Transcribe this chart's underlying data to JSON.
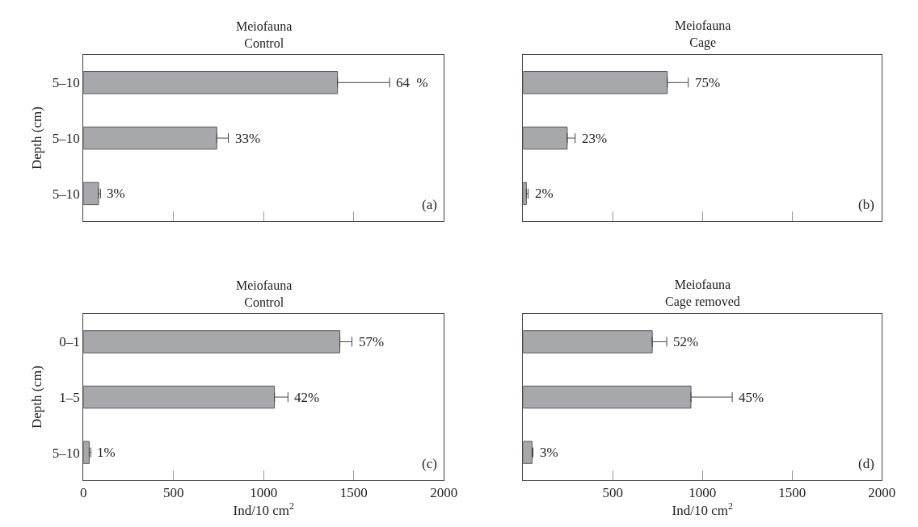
{
  "chart_data": [
    {
      "type": "bar",
      "orientation": "horizontal",
      "title": "Meiofauna\nControl",
      "ylabel": "Depth (cm)",
      "categories": [
        "5–10",
        "5–10",
        "5–10"
      ],
      "values": [
        1410,
        740,
        84
      ],
      "errors": [
        [
          1410,
          1699
        ],
        [
          740,
          804
        ],
        [
          84,
          95
        ]
      ],
      "color": "#a7a8ab",
      "xlim": [
        0,
        2000
      ],
      "xticks": [
        {
          "value": 500,
          "label": null
        },
        {
          "value": 1000,
          "label": null
        },
        {
          "value": 1500,
          "label": null
        }
      ],
      "tick_labels": "y",
      "annotations": [
        "(a)",
        {
          "text": "64  %",
          "x": 1699
        },
        {
          "text": "33%",
          "x": 804
        },
        {
          "text": "3%",
          "x": 95
        }
      ]
    },
    {
      "type": "bar",
      "orientation": "horizontal",
      "title": "Meiofauna\nCage",
      "categories": [
        null,
        null,
        null
      ],
      "values": [
        804,
        246,
        18
      ],
      "errors": [
        [
          804,
          921
        ],
        [
          246,
          290
        ],
        [
          18,
          28
        ]
      ],
      "color": "#a7a8ab",
      "xlim": [
        0,
        2000
      ],
      "xticks": [
        {
          "value": 500,
          "label": null
        },
        {
          "value": 1000,
          "label": null
        },
        {
          "value": 1500,
          "label": null
        }
      ],
      "tick_labels": false,
      "annotations": [
        "(b)",
        {
          "text": "75%",
          "x": 921
        },
        {
          "text": "23%",
          "x": 290
        },
        {
          "text": "2%",
          "x": 28
        }
      ]
    },
    {
      "type": "bar",
      "orientation": "horizontal",
      "title": "Meiofauna\nControl",
      "xlabel": "Ind/10 cm$^{2}$",
      "ylabel": "Depth (cm)",
      "categories": [
        "0–1",
        "1–5",
        "5–10"
      ],
      "values": [
        1423,
        1060,
        32
      ],
      "errors": [
        [
          1423,
          1490
        ],
        [
          1060,
          1135
        ],
        [
          32,
          41
        ]
      ],
      "color": "#a7a8ab",
      "xlim": [
        0,
        2000
      ],
      "xticks": [
        0,
        500,
        1000,
        1500,
        2000
      ],
      "annotations": [
        "(c)",
        {
          "text": "57%",
          "x": 1490,
          "y": "0–1"
        },
        {
          "text": "42%",
          "x": 1135,
          "y": "1–5"
        },
        {
          "text": "1%",
          "x": 41,
          "y": "5–10"
        }
      ]
    },
    {
      "type": "bar",
      "orientation": "horizontal",
      "title": "Meiofauna\nCage removed",
      "xlabel": "Ind/10 cm$^{2}$",
      "categories": [
        null,
        null,
        null
      ],
      "values": [
        720,
        936,
        50
      ],
      "errors": [
        [
          720,
          801
        ],
        [
          936,
          1166
        ],
        [
          50,
          55
        ]
      ],
      "color": "#a7a8ab",
      "xlim": [
        0,
        2000
      ],
      "xticks": [
        500,
        1000,
        1500,
        2000
      ],
      "tick_labels": "x",
      "annotations": [
        "(d)",
        {
          "text": "52%",
          "x": 801
        },
        {
          "text": "45%",
          "x": 1166
        },
        {
          "text": "3%",
          "x": 55
        }
      ]
    }
  ]
}
